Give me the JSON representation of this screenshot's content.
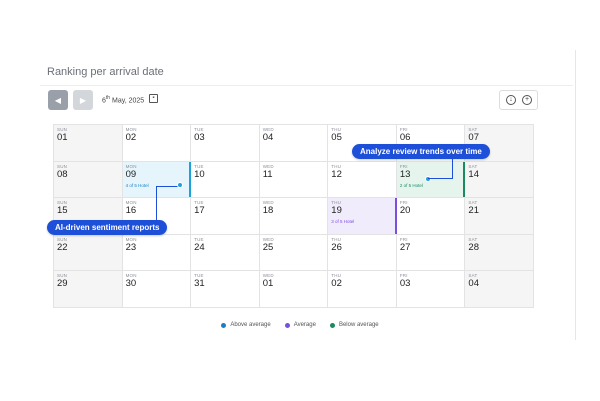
{
  "header": {
    "title": "Ranking per arrival date"
  },
  "toolbar": {
    "date_day": "6",
    "date_suffix": "th",
    "date_rest": " May, 2025"
  },
  "calendar": {
    "weeks": [
      [
        {
          "dow": "SUN",
          "day": "01"
        },
        {
          "dow": "MON",
          "day": "02"
        },
        {
          "dow": "TUE",
          "day": "03"
        },
        {
          "dow": "WED",
          "day": "04"
        },
        {
          "dow": "THU",
          "day": "05"
        },
        {
          "dow": "FRI",
          "day": "06"
        },
        {
          "dow": "SAT",
          "day": "07"
        }
      ],
      [
        {
          "dow": "SUN",
          "day": "08"
        },
        {
          "dow": "MON",
          "day": "09",
          "rank": "4 of 5 Hotel",
          "status": "above"
        },
        {
          "dow": "TUE",
          "day": "10"
        },
        {
          "dow": "WED",
          "day": "11"
        },
        {
          "dow": "THU",
          "day": "12"
        },
        {
          "dow": "FRI",
          "day": "13",
          "rank": "2 of 5 Hotel",
          "status": "below"
        },
        {
          "dow": "SAT",
          "day": "14"
        }
      ],
      [
        {
          "dow": "SUN",
          "day": "15"
        },
        {
          "dow": "MON",
          "day": "16"
        },
        {
          "dow": "TUE",
          "day": "17"
        },
        {
          "dow": "WED",
          "day": "18"
        },
        {
          "dow": "THU",
          "day": "19",
          "rank": "3 of 5 Hotel",
          "status": "average"
        },
        {
          "dow": "FRI",
          "day": "20"
        },
        {
          "dow": "SAT",
          "day": "21"
        }
      ],
      [
        {
          "dow": "SUN",
          "day": "22"
        },
        {
          "dow": "MON",
          "day": "23"
        },
        {
          "dow": "TUE",
          "day": "24"
        },
        {
          "dow": "WED",
          "day": "25"
        },
        {
          "dow": "THU",
          "day": "26"
        },
        {
          "dow": "FRI",
          "day": "27"
        },
        {
          "dow": "SAT",
          "day": "28"
        }
      ],
      [
        {
          "dow": "SUN",
          "day": "29"
        },
        {
          "dow": "MON",
          "day": "30"
        },
        {
          "dow": "TUE",
          "day": "31"
        },
        {
          "dow": "WED",
          "day": "01"
        },
        {
          "dow": "THU",
          "day": "02"
        },
        {
          "dow": "FRI",
          "day": "03"
        },
        {
          "dow": "SAT",
          "day": "04"
        }
      ]
    ]
  },
  "callouts": {
    "trends": "Analyze review trends over time",
    "sentiment": "AI-driven sentiment reports"
  },
  "legend": {
    "items": [
      {
        "label": "Above average",
        "color": "#1b7fc4"
      },
      {
        "label": "Average",
        "color": "#7a4fe0"
      },
      {
        "label": "Below average",
        "color": "#1c8a60"
      }
    ]
  },
  "colors": {
    "accent": "#1d4fd9",
    "above": "#1b7fc4",
    "average": "#7a4fe0",
    "below": "#1c8a60"
  }
}
